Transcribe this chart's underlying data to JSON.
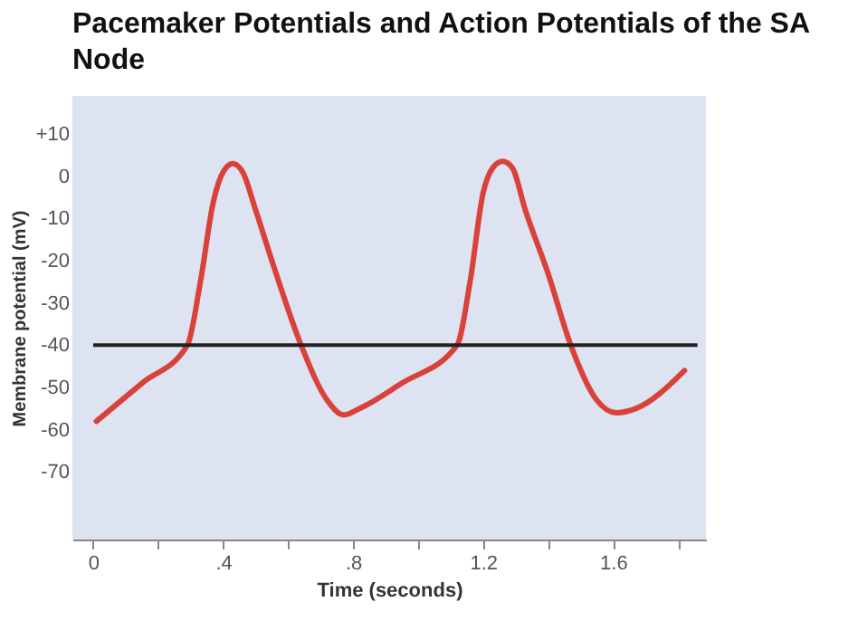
{
  "chart_data": {
    "type": "line",
    "title": "Pacemaker Potentials and Action Potentials of the SA Node",
    "xlabel": "Time (seconds)",
    "ylabel": "Membrane potential (mV)",
    "x": [
      0.01,
      0.15,
      0.29,
      0.33,
      0.37,
      0.4,
      0.43,
      0.46,
      0.5,
      0.55,
      0.64,
      0.72,
      0.77,
      0.82,
      0.95,
      1.12,
      1.16,
      1.2,
      1.23,
      1.26,
      1.29,
      1.33,
      1.4,
      1.47,
      1.55,
      1.61,
      1.67,
      1.82
    ],
    "series": [
      {
        "color": "#d9413a",
        "values": [
          -58,
          -49,
          -40,
          -25,
          -6,
          1,
          3,
          1,
          -8,
          -20,
          -40,
          -53,
          -56.5,
          -55,
          -49,
          -40,
          -25,
          -4,
          2,
          3.5,
          2,
          -8,
          -23,
          -40,
          -53,
          -56,
          -55,
          -46
        ]
      }
    ],
    "ref_lines": [
      {
        "axis": "y",
        "value": -40,
        "color": "#222222"
      }
    ],
    "xlim": [
      -0.064,
      1.886
    ],
    "ylim": [
      -86,
      19
    ],
    "xticks": [
      0,
      {
        "value": 0.2,
        "label": null
      },
      {
        "value": 0.4,
        "label": ".4"
      },
      {
        "value": 0.6,
        "label": null
      },
      {
        "value": 0.8,
        "label": ".8"
      },
      {
        "value": 1.0,
        "label": null
      },
      1.2,
      {
        "value": 1.4,
        "label": null
      },
      1.6,
      {
        "value": 1.8,
        "label": null
      }
    ],
    "yticks": [
      {
        "value": 10,
        "label": "+10"
      },
      0,
      -10,
      -20,
      -30,
      -40,
      -50,
      -60,
      -70
    ],
    "grid": false,
    "line_style": "solid",
    "marker": "none"
  }
}
